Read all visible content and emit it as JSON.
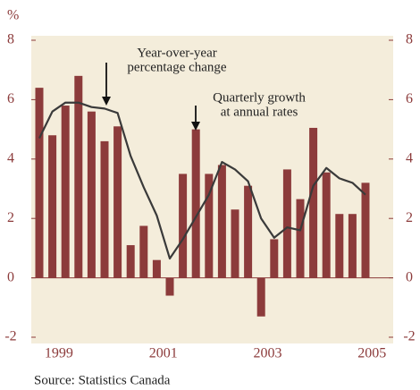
{
  "chart_data": {
    "type": "bar_line",
    "y_unit": "%",
    "source": "Source: Statistics Canada",
    "categories": [
      null,
      null,
      null,
      null,
      null,
      null,
      null,
      null,
      null,
      null,
      null,
      null,
      null,
      null,
      null,
      null,
      null,
      null,
      null,
      null,
      null,
      null,
      null,
      null,
      null,
      null
    ],
    "xticks": [
      {
        "value": 1.5,
        "label": "1999"
      },
      {
        "value": 9.5,
        "label": "2001"
      },
      {
        "value": 17.5,
        "label": "2003"
      },
      {
        "value": 25.5,
        "label": "2005"
      }
    ],
    "series": [
      {
        "name": "Quarterly growth at annual rates",
        "kind": "bar",
        "color": "#8c3b3b",
        "values": [
          6.4,
          4.8,
          5.8,
          6.8,
          5.6,
          4.6,
          5.1,
          1.1,
          1.75,
          0.6,
          -0.6,
          3.5,
          5.0,
          3.5,
          3.8,
          2.3,
          3.1,
          -1.3,
          1.3,
          3.65,
          2.65,
          5.05,
          3.55,
          2.15,
          2.15,
          3.2
        ]
      },
      {
        "name": "Year-over-year percentage change",
        "kind": "line",
        "color": "#3a3a3a",
        "values": [
          4.7,
          5.6,
          5.9,
          5.9,
          5.75,
          5.7,
          5.55,
          4.1,
          3.05,
          2.1,
          0.65,
          1.3,
          2.05,
          2.8,
          3.9,
          3.65,
          3.25,
          2.0,
          1.35,
          1.7,
          1.6,
          3.1,
          3.7,
          3.35,
          3.2,
          2.8
        ]
      }
    ],
    "annotations": [
      {
        "lines": [
          "Year-over-year",
          "percentage change"
        ],
        "series": 1,
        "index": 5
      },
      {
        "lines": [
          "Quarterly growth",
          "at annual rates"
        ],
        "series": 0,
        "index": 12
      }
    ],
    "ylim": [
      -2,
      8
    ],
    "yticks": [
      -2,
      0,
      2,
      4,
      6,
      8
    ],
    "background": "#f4eddb",
    "zero_line_color": "#8c3b3b"
  }
}
